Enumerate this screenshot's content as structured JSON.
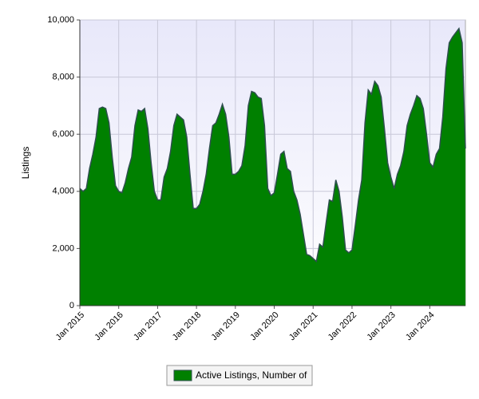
{
  "chart_data": {
    "type": "area",
    "y_label": "Listings",
    "x": [
      "2015-01",
      "2015-02",
      "2015-03",
      "2015-04",
      "2015-05",
      "2015-06",
      "2015-07",
      "2015-08",
      "2015-09",
      "2015-10",
      "2015-11",
      "2015-12",
      "2016-01",
      "2016-02",
      "2016-03",
      "2016-04",
      "2016-05",
      "2016-06",
      "2016-07",
      "2016-08",
      "2016-09",
      "2016-10",
      "2016-11",
      "2016-12",
      "2017-01",
      "2017-02",
      "2017-03",
      "2017-04",
      "2017-05",
      "2017-06",
      "2017-07",
      "2017-08",
      "2017-09",
      "2017-10",
      "2017-11",
      "2017-12",
      "2018-01",
      "2018-02",
      "2018-03",
      "2018-04",
      "2018-05",
      "2018-06",
      "2018-07",
      "2018-08",
      "2018-09",
      "2018-10",
      "2018-11",
      "2018-12",
      "2019-01",
      "2019-02",
      "2019-03",
      "2019-04",
      "2019-05",
      "2019-06",
      "2019-07",
      "2019-08",
      "2019-09",
      "2019-10",
      "2019-11",
      "2019-12",
      "2020-01",
      "2020-02",
      "2020-03",
      "2020-04",
      "2020-05",
      "2020-06",
      "2020-07",
      "2020-08",
      "2020-09",
      "2020-10",
      "2020-11",
      "2020-12",
      "2021-01",
      "2021-02",
      "2021-03",
      "2021-04",
      "2021-05",
      "2021-06",
      "2021-07",
      "2021-08",
      "2021-09",
      "2021-10",
      "2021-11",
      "2021-12",
      "2022-01",
      "2022-02",
      "2022-03",
      "2022-04",
      "2022-05",
      "2022-06",
      "2022-07",
      "2022-08",
      "2022-09",
      "2022-10",
      "2022-11",
      "2022-12",
      "2023-01",
      "2023-02",
      "2023-03",
      "2023-04",
      "2023-05",
      "2023-06",
      "2023-07",
      "2023-08",
      "2023-09",
      "2023-10",
      "2023-11",
      "2023-12",
      "2024-01",
      "2024-02",
      "2024-03",
      "2024-04",
      "2024-05",
      "2024-06",
      "2024-07",
      "2024-08",
      "2024-09",
      "2024-10",
      "2024-11",
      "2024-12"
    ],
    "series": [
      {
        "name": "Active Listings, Number of",
        "color": "#008000",
        "values": [
          4100,
          4000,
          4100,
          4800,
          5300,
          5900,
          6900,
          6950,
          6900,
          6400,
          5200,
          4200,
          4000,
          3950,
          4300,
          4800,
          5200,
          6300,
          6850,
          6800,
          6900,
          6200,
          5000,
          4000,
          3700,
          3700,
          4500,
          4800,
          5400,
          6300,
          6700,
          6600,
          6500,
          5900,
          4600,
          3400,
          3400,
          3550,
          4000,
          4600,
          5500,
          6300,
          6400,
          6700,
          7050,
          6700,
          5900,
          4600,
          4600,
          4700,
          4900,
          5600,
          7000,
          7500,
          7450,
          7300,
          7250,
          6300,
          4100,
          3850,
          3950,
          4600,
          5300,
          5400,
          4800,
          4700,
          4000,
          3700,
          3200,
          2500,
          1800,
          1750,
          1650,
          1550,
          2150,
          2050,
          2900,
          3700,
          3650,
          4400,
          4000,
          3100,
          1950,
          1850,
          1950,
          2800,
          3700,
          4400,
          6400,
          7550,
          7400,
          7850,
          7700,
          7300,
          6200,
          5000,
          4500,
          4100,
          4600,
          4900,
          5400,
          6300,
          6700,
          7000,
          7350,
          7250,
          6900,
          6000,
          5000,
          4850,
          5300,
          5500,
          6600,
          8300,
          9200,
          9400,
          9550,
          9700,
          9200,
          5500
        ]
      }
    ],
    "xticks": [
      {
        "value": "2015-01",
        "label": "Jan 2015"
      },
      {
        "value": "2016-01",
        "label": "Jan 2016"
      },
      {
        "value": "2017-01",
        "label": "Jan 2017"
      },
      {
        "value": "2018-01",
        "label": "Jan 2018"
      },
      {
        "value": "2019-01",
        "label": "Jan 2019"
      },
      {
        "value": "2020-01",
        "label": "Jan 2020"
      },
      {
        "value": "2021-01",
        "label": "Jan 2021"
      },
      {
        "value": "2022-01",
        "label": "Jan 2022"
      },
      {
        "value": "2023-01",
        "label": "Jan 2023"
      },
      {
        "value": "2024-01",
        "label": "Jan 2024"
      }
    ],
    "ylim": [
      0,
      10000
    ],
    "yticks": [
      0,
      {
        "value": 2000,
        "label": "2,000"
      },
      {
        "value": 4000,
        "label": "4,000"
      },
      {
        "value": 6000,
        "label": "6,000"
      },
      {
        "value": 8000,
        "label": "8,000"
      },
      {
        "value": 10000,
        "label": "10,000"
      }
    ],
    "grid": true,
    "legend": "bottom"
  }
}
